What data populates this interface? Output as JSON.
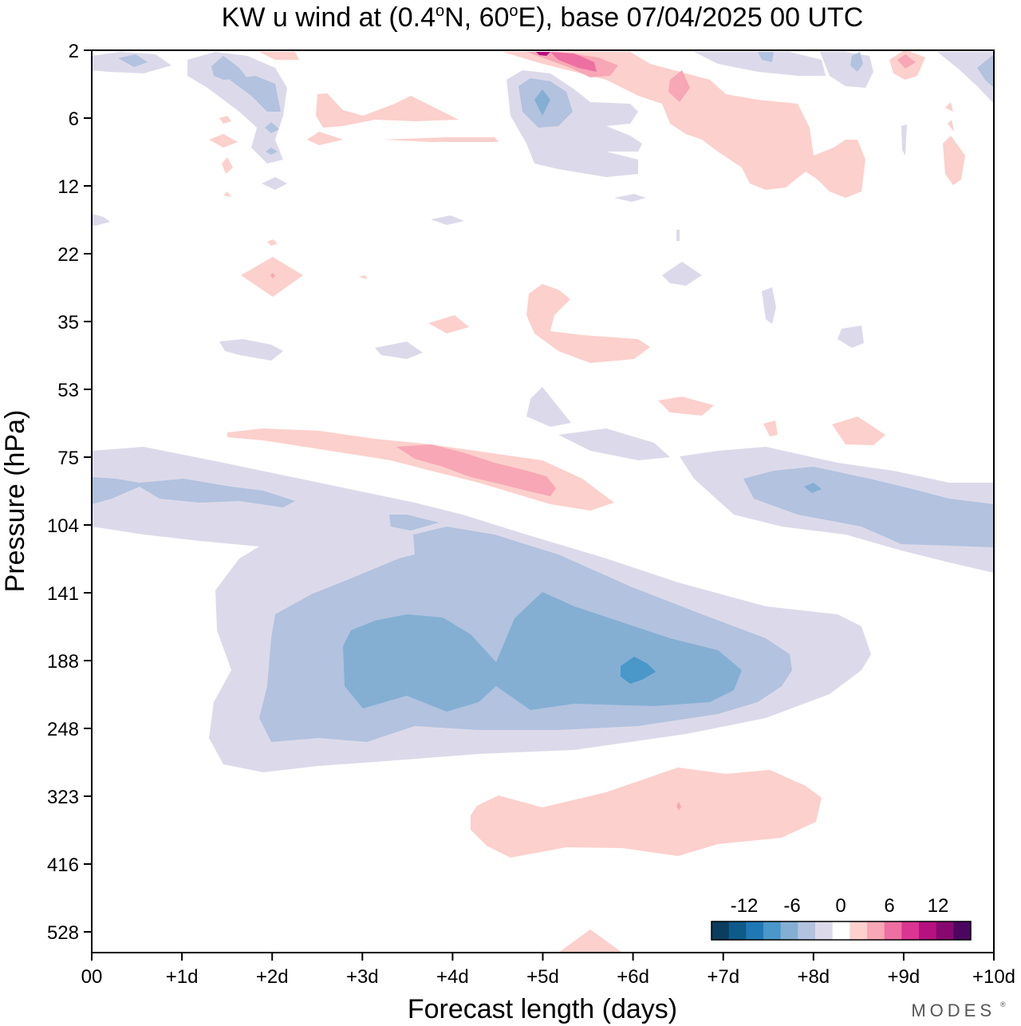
{
  "chart_data": {
    "type": "heatmap",
    "title": "KW u wind at (0.4°N, 60°E),  base 07/04/2025  00 UTC",
    "title_parts": {
      "pre": "KW u wind at (0.4",
      "deg1": "o",
      "mid": "N, 60",
      "deg2": "o",
      "post": "E),  base 07/04/2025  00 UTC"
    },
    "xlabel": "Forecast length (days)",
    "ylabel": "Pressure (hPa)",
    "x_ticks": [
      "00",
      "+1d",
      "+2d",
      "+3d",
      "+4d",
      "+5d",
      "+6d",
      "+7d",
      "+8d",
      "+9d",
      "+10d"
    ],
    "xlim": [
      0,
      10
    ],
    "y_ticks": [
      "2",
      "6",
      "12",
      "22",
      "35",
      "53",
      "75",
      "104",
      "141",
      "188",
      "248",
      "323",
      "416",
      "528"
    ],
    "y_scale": "log (pressure, top = 2 hPa)",
    "colorbar": {
      "labels": [
        "-12",
        "-6",
        "0",
        "6",
        "12"
      ],
      "colors": [
        "#0b3d5e",
        "#0e5a8a",
        "#1f78b4",
        "#4a97c9",
        "#84afd3",
        "#b2c2df",
        "#dcdaea",
        "#ffffff",
        "#fcd0cc",
        "#f7a7b6",
        "#ee6fa2",
        "#d93591",
        "#b5127f",
        "#87096f",
        "#4b0760"
      ]
    },
    "features": [
      {
        "name": "jet-core-negative",
        "x_range": [
          2.9,
          5.6
        ],
        "pressure_range": [
          160,
          230
        ],
        "value": -9
      },
      {
        "name": "jet-core-max",
        "x": 6.0,
        "pressure": 188,
        "value": -12
      },
      {
        "name": "negative-upper-trop",
        "x_range": [
          1.3,
          8.6
        ],
        "pressure_range": [
          100,
          300
        ],
        "value": -3
      },
      {
        "name": "positive-lower-trop",
        "x_range": [
          4.3,
          8.2
        ],
        "pressure_range": [
          320,
          420
        ],
        "value": 3
      },
      {
        "name": "positive-75hPa",
        "x_range": [
          1.5,
          5.8
        ],
        "pressure_range": [
          66,
          95
        ],
        "value": 4
      },
      {
        "name": "negative-85hPa-right",
        "x_range": [
          6.5,
          10
        ],
        "pressure_range": [
          75,
          125
        ],
        "value": -4
      },
      {
        "name": "positive-stratopause",
        "x_range": [
          5.0,
          9.0
        ],
        "pressure_range": [
          2,
          12
        ],
        "value": 5
      }
    ]
  },
  "branding": {
    "text": "MODES"
  }
}
